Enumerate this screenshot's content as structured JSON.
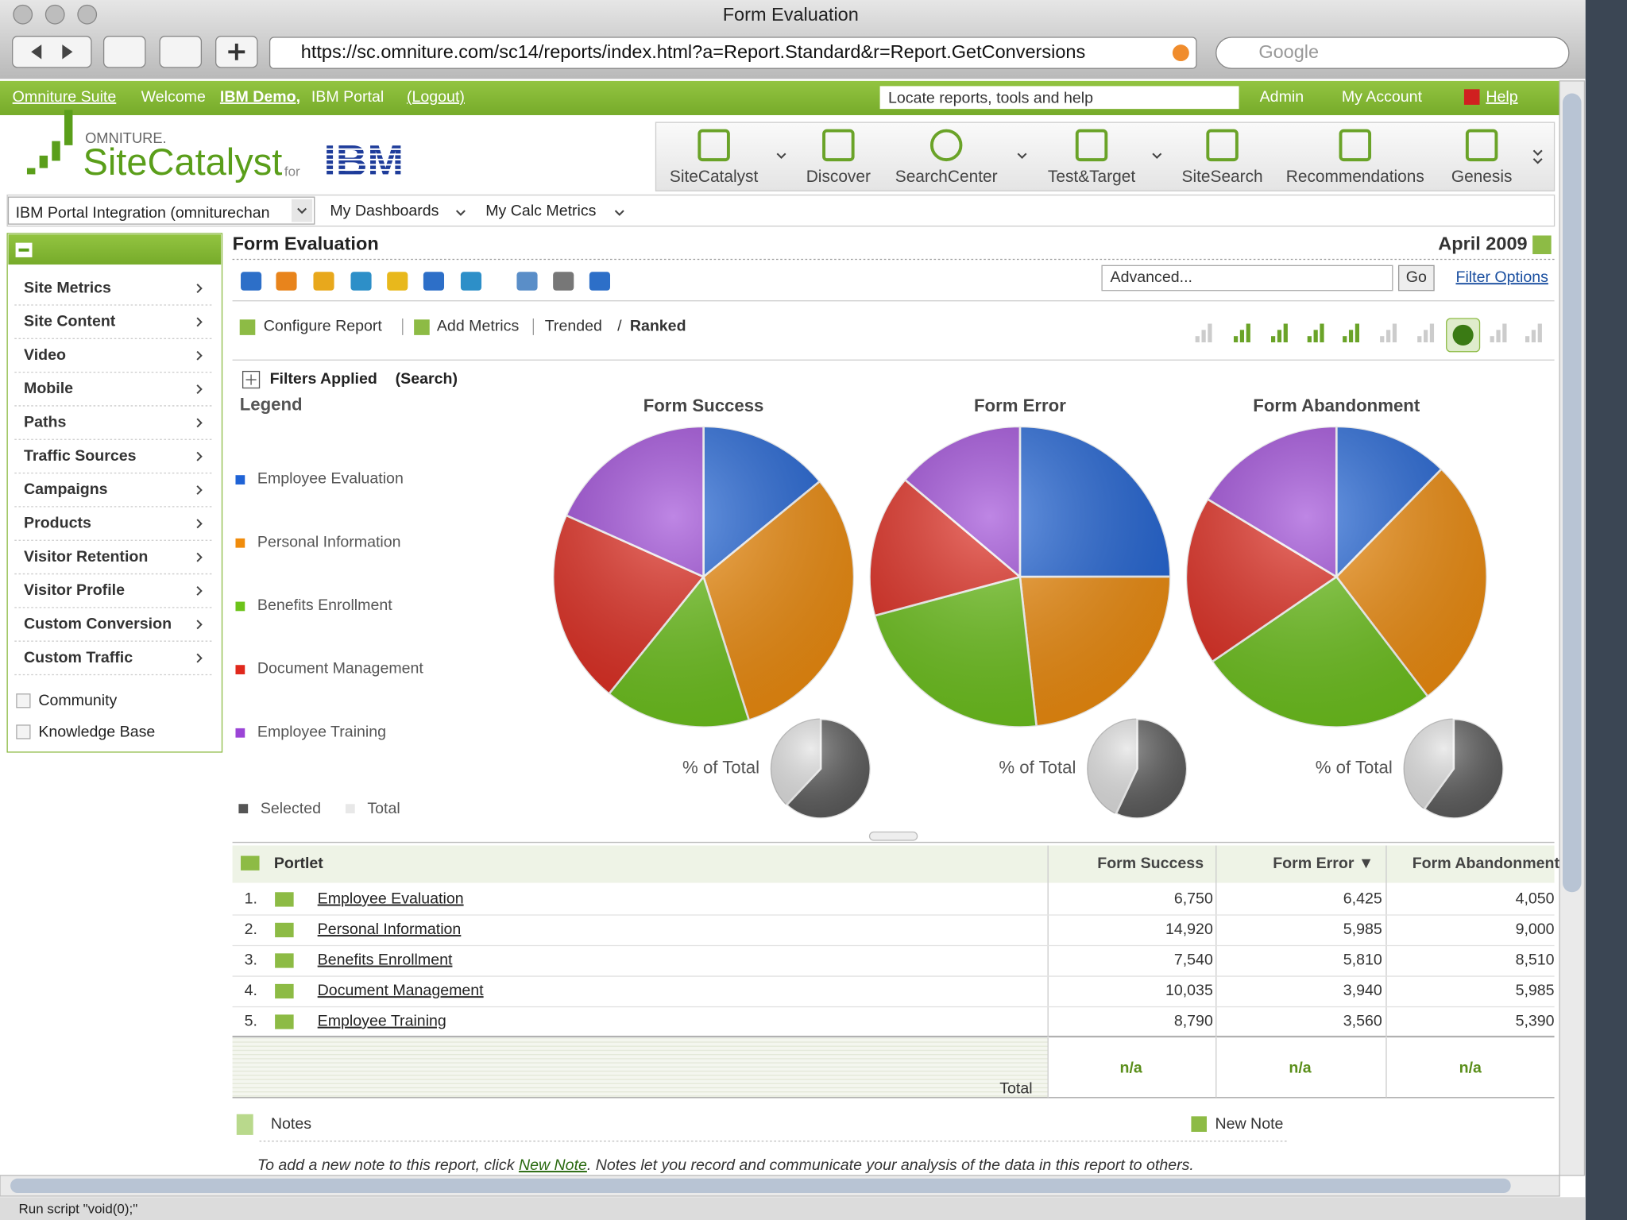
{
  "browser": {
    "title": "Form Evaluation",
    "url": "https://sc.omniture.com/sc14/reports/index.html?a=Report.Standard&r=Report.GetConversions",
    "search": "Google",
    "status": "Run script \"void(0);\""
  },
  "topbar": {
    "suite": "Omniture Suite",
    "welcome": "Welcome",
    "user": "IBM Demo,",
    "portal": "IBM Portal",
    "logout": "(Logout)",
    "search": "Locate reports, tools and help",
    "admin": "Admin",
    "account": "My Account",
    "help": "Help"
  },
  "brand": {
    "omniture": "OMNITURE.",
    "product": "SiteCatalyst",
    "for": "for",
    "partner": "IBM"
  },
  "tools": [
    "SiteCatalyst",
    "Discover",
    "SearchCenter",
    "Test&Target",
    "SiteSearch",
    "Recommendations",
    "Genesis"
  ],
  "subnav": {
    "suite_select": "IBM Portal Integration (omniturechan",
    "dashboards": "My Dashboards",
    "calc": "My Calc Metrics"
  },
  "sidebar": {
    "menu": [
      "Site Metrics",
      "Site Content",
      "Video",
      "Mobile",
      "Paths",
      "Traffic Sources",
      "Campaigns",
      "Products",
      "Visitor Retention",
      "Visitor Profile",
      "Custom Conversion",
      "Custom Traffic"
    ],
    "links": [
      "Community",
      "Knowledge Base"
    ]
  },
  "report": {
    "title": "Form Evaluation",
    "date": "April 2009",
    "search": "Advanced...",
    "go": "Go",
    "filter": "Filter Options",
    "configure": "Configure Report",
    "add_metrics": "Add Metrics",
    "trended": "Trended",
    "separator": "/",
    "ranked": "Ranked",
    "filters": "Filters Applied",
    "filters_note": "(Search)",
    "legend_title": "Legend",
    "selected": "Selected",
    "total": "Total"
  },
  "chart_data": [
    {
      "type": "pie",
      "title": "Form Success",
      "categories": [
        "Employee Evaluation",
        "Personal Information",
        "Benefits Enrollment",
        "Document Management",
        "Employee Training"
      ],
      "values": [
        6750,
        14920,
        7540,
        10035,
        8790
      ],
      "colors": [
        "#1f63d6",
        "#f08c0c",
        "#6cc31a",
        "#e0281c",
        "#9b45d6"
      ],
      "inset": {
        "label": "% of Total",
        "selected": 62
      }
    },
    {
      "type": "pie",
      "title": "Form Error",
      "categories": [
        "Employee Evaluation",
        "Personal Information",
        "Benefits Enrollment",
        "Document Management",
        "Employee Training"
      ],
      "values": [
        6425,
        5985,
        5810,
        3940,
        3560
      ],
      "colors": [
        "#1f63d6",
        "#f08c0c",
        "#6cc31a",
        "#e0281c",
        "#9b45d6"
      ],
      "inset": {
        "label": "% of Total",
        "selected": 57
      }
    },
    {
      "type": "pie",
      "title": "Form Abandonment",
      "categories": [
        "Employee Evaluation",
        "Personal Information",
        "Benefits Enrollment",
        "Document Management",
        "Employee Training"
      ],
      "values": [
        4050,
        9000,
        8510,
        5985,
        5390
      ],
      "colors": [
        "#1f63d6",
        "#f08c0c",
        "#6cc31a",
        "#e0281c",
        "#9b45d6"
      ],
      "inset": {
        "label": "% of Total",
        "selected": 60
      }
    }
  ],
  "table": {
    "header": [
      "Portlet",
      "Form Success",
      "Form Error ▼",
      "Form Abandonment"
    ],
    "rows": [
      [
        "1.",
        "Employee Evaluation",
        "6,750",
        "6,425",
        "4,050"
      ],
      [
        "2.",
        "Personal Information",
        "14,920",
        "5,985",
        "9,000"
      ],
      [
        "3.",
        "Benefits Enrollment",
        "7,540",
        "5,810",
        "8,510"
      ],
      [
        "4.",
        "Document Management",
        "10,035",
        "3,940",
        "5,985"
      ],
      [
        "5.",
        "Employee Training",
        "8,790",
        "3,560",
        "5,390"
      ]
    ],
    "total": [
      "Total",
      "n/a",
      "n/a",
      "n/a"
    ]
  },
  "notes": {
    "title": "Notes",
    "new": "New Note",
    "before": "To add a new note to this report, click ",
    "link": "New Note",
    "after": ". Notes let you record and communicate your analysis of the data in this report to others."
  }
}
